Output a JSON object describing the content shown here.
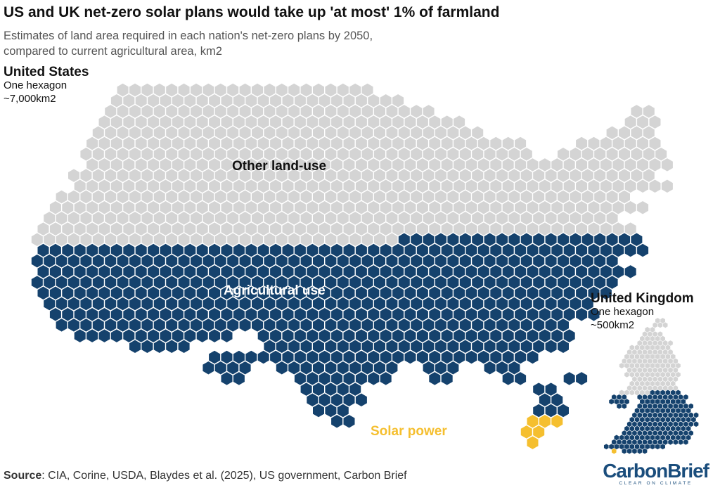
{
  "header": {
    "title": "US and UK net-zero solar plans would take up 'at most' 1% of farmland",
    "subtitle_line1": "Estimates of land area required in each nation's net-zero plans by 2050,",
    "subtitle_line2": "compared to current agricultural area, km2"
  },
  "colors": {
    "other": "#d4d4d4",
    "agri": "#15426d",
    "solar": "#f5bf2f",
    "stroke": "#ffffff"
  },
  "chart_data": {
    "type": "hex-map",
    "title": "US and UK net-zero solar plans would take up 'at most' 1% of farmland",
    "subtitle": "Estimates of land area required in each nation's net-zero plans by 2050, compared to current agricultural area, km2",
    "countries": [
      {
        "name": "United States",
        "unit_line1": "One hexagon",
        "unit_line2": "~7,000km2",
        "categories": [
          {
            "key": "other",
            "label": "Other land-use"
          },
          {
            "key": "agri",
            "label": "Agricultural use"
          },
          {
            "key": "solar",
            "label": "Solar power"
          }
        ]
      },
      {
        "name": "United Kingdom",
        "unit_line1": "One hexagon",
        "unit_line2": "~500km2",
        "categories": [
          {
            "key": "other",
            "label": "Other land-use"
          },
          {
            "key": "agri",
            "label": "Agricultural use"
          },
          {
            "key": "solar",
            "label": "Solar power"
          }
        ]
      }
    ],
    "headline": "'at most' 1% of farmland"
  },
  "footer": {
    "source_label": "Source",
    "source_text": ": CIA, Corine, USDA, Blaydes et al. (2025), US government, Carbon Brief",
    "logo_text": "CarbonBrief",
    "logo_tagline": "CLEAR ON CLIMATE"
  }
}
